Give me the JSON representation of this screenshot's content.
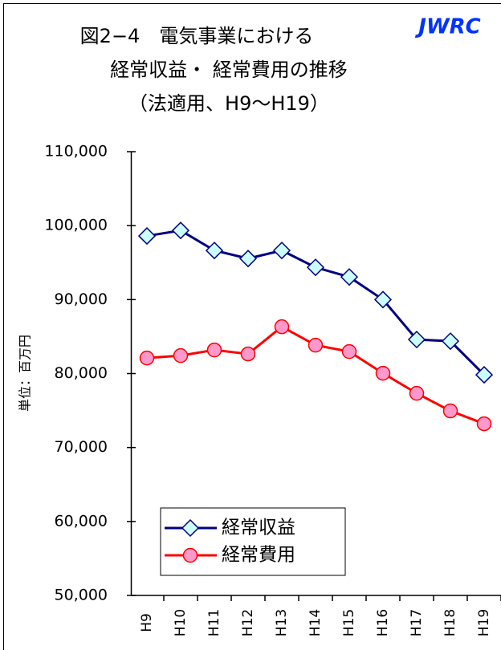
{
  "chart_data": {
    "type": "line",
    "title": "図2−4　電気事業における",
    "subtitle": "経常収益・ 経常費用の推移",
    "subtitle2": "（法適用、H9〜H19）",
    "brand": "JWRC",
    "y_label": "単位：百万円",
    "categories": [
      "H9",
      "H10",
      "H11",
      "H12",
      "H13",
      "H14",
      "H15",
      "H16",
      "H17",
      "H18",
      "H19"
    ],
    "series": [
      {
        "name": "経常収益",
        "color": "#000080",
        "marker": "diamond",
        "marker_color": "#ccffff",
        "values": [
          98600,
          99350,
          96640,
          95550,
          96640,
          94360,
          93060,
          90000,
          84600,
          84380,
          79830
        ]
      },
      {
        "name": "経常費用",
        "color": "#ff0000",
        "marker": "circle",
        "marker_color": "#ff99cc",
        "values": [
          82100,
          82430,
          83190,
          82650,
          86330,
          83840,
          82970,
          80040,
          77330,
          74950,
          73210
        ]
      }
    ],
    "ylim": [
      50000,
      110000
    ],
    "yticks": [
      {
        "value": 50000,
        "label": "50,000"
      },
      {
        "value": 60000,
        "label": "60,000"
      },
      {
        "value": 70000,
        "label": "70,000"
      },
      {
        "value": 80000,
        "label": "80,000"
      },
      {
        "value": 90000,
        "label": "90,000"
      },
      {
        "value": 100000,
        "label": "100,000"
      },
      {
        "value": 110000,
        "label": "110,000"
      }
    ],
    "grid": false
  }
}
